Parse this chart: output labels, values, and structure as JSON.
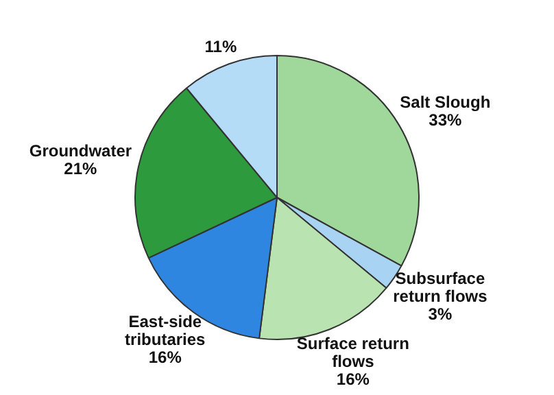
{
  "chart_data": {
    "type": "pie",
    "categories": [
      "Salt Slough",
      "Subsurface return flows",
      "Surface return flows",
      "East-side tributaries",
      "Groundwater",
      null
    ],
    "values": [
      33,
      3,
      16,
      16,
      21,
      11
    ],
    "colors": [
      "#9fd89a",
      "#a9d3f2",
      "#b9e3b0",
      "#2f86e0",
      "#2e9a3e",
      "#b5dcf7"
    ],
    "value_labels": [
      "33%",
      "3%",
      "16%",
      "16%",
      "21%",
      "11%"
    ],
    "legend": false
  }
}
